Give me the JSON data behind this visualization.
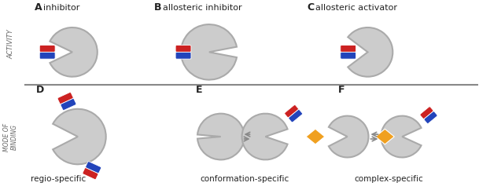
{
  "bg": "#ffffff",
  "gray": "#cccccc",
  "gray_edge": "#aaaaaa",
  "red": "#cc2222",
  "blue": "#2244bb",
  "orange": "#f0a020",
  "text_dark": "#222222",
  "text_mid": "#666666",
  "lbl_A": "A",
  "lbl_B": "B",
  "lbl_C": "C",
  "lbl_D": "D",
  "lbl_E": "E",
  "lbl_F": "F",
  "ttl_A": "inhibitor",
  "ttl_B": "allosteric inhibitor",
  "ttl_C": "allosteric activator",
  "sub_D": "regio-specific",
  "sub_E": "conformation-specific",
  "sub_F": "complex-specific",
  "side_top": "ACTIVITY",
  "side_bot": "MODE OF\nBINDING"
}
